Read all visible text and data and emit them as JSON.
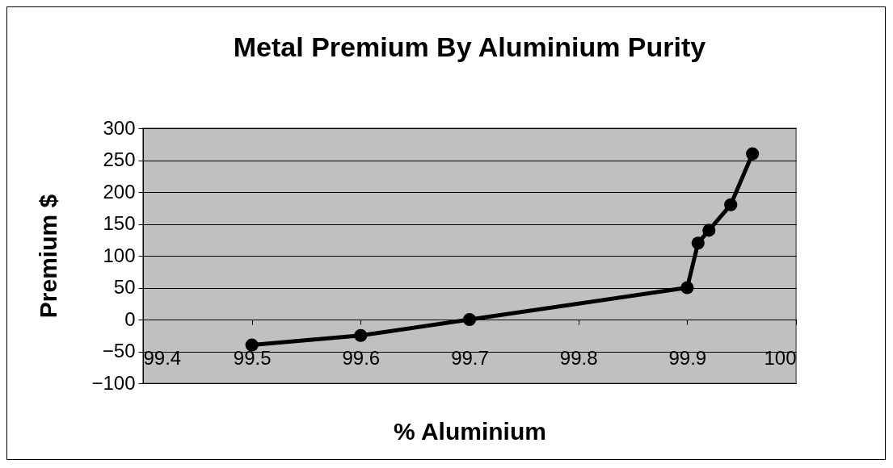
{
  "chart_data": {
    "type": "line",
    "title": "Metal Premium By Aluminium Purity",
    "xlabel": "% Aluminium",
    "ylabel": "Premium $",
    "x": [
      99.5,
      99.6,
      99.7,
      99.9,
      99.91,
      99.92,
      99.94,
      99.96
    ],
    "series": [
      {
        "color": "#000000",
        "values": [
          -40,
          -25,
          0,
          50,
          120,
          140,
          180,
          260
        ]
      }
    ],
    "xlim": [
      99.4,
      100
    ],
    "xticks": [
      99.4,
      99.5,
      99.6,
      99.7,
      99.8,
      99.9,
      100
    ],
    "ylim": [
      -100,
      300
    ],
    "yticks": [
      -100,
      -50,
      0,
      50,
      100,
      150,
      200,
      250,
      300
    ],
    "grid": "y",
    "marker": "circle",
    "line_style": "solid"
  }
}
